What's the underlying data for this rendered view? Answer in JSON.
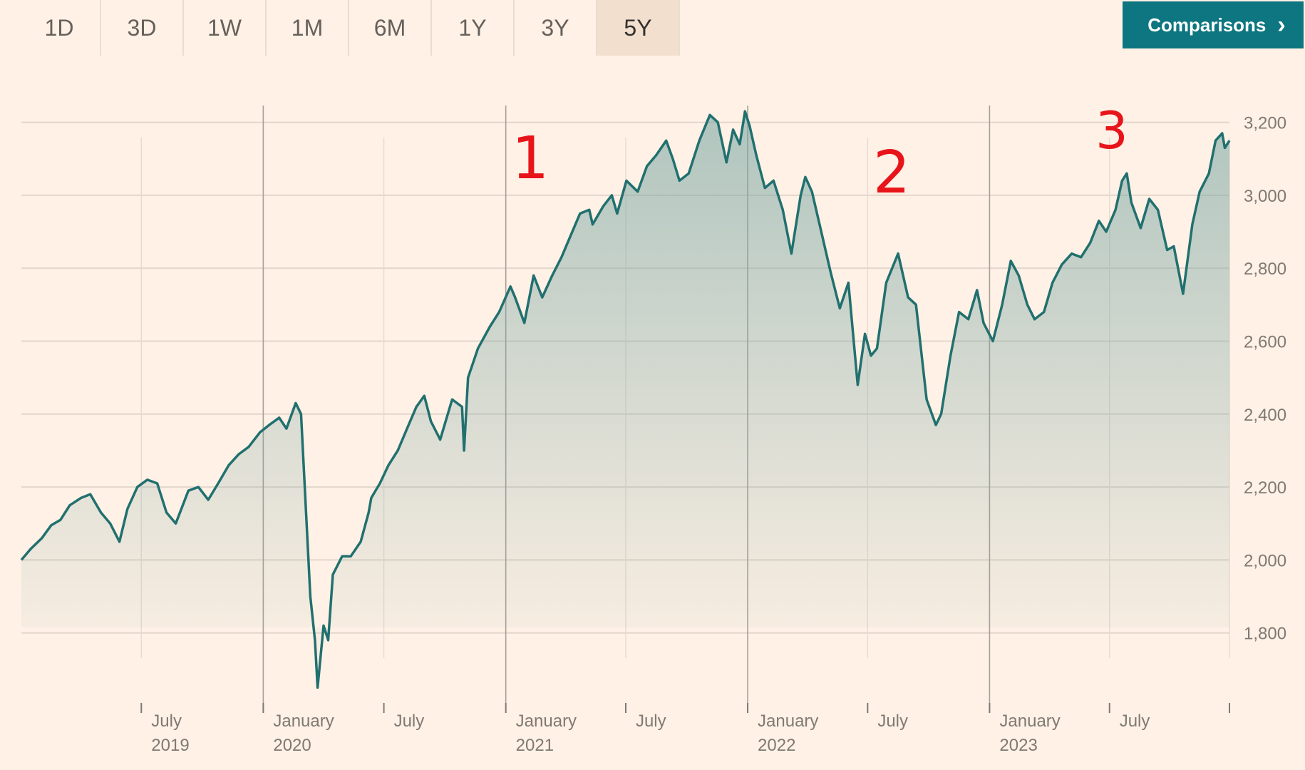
{
  "toolbar": {
    "tabs": [
      "1D",
      "3D",
      "1W",
      "1M",
      "6M",
      "1Y",
      "3Y",
      "5Y"
    ],
    "active_tab": "5Y",
    "comparisons_label": "Comparisons",
    "comparisons_icon": "chevron-right-icon"
  },
  "colors": {
    "background": "#fff1e5",
    "line": "#21706f",
    "fill": "#7aa7a4",
    "accent_button": "#0d7680",
    "annotation": "#e8141a"
  },
  "chart_data": {
    "type": "area",
    "ylim": [
      1600,
      3250
    ],
    "y_ticks": [
      1800,
      2000,
      2200,
      2400,
      2600,
      2800,
      3000,
      3200
    ],
    "y_tick_labels": [
      "1,800",
      "2,000",
      "2,200",
      "2,400",
      "2,600",
      "2,800",
      "3,000",
      "3,200"
    ],
    "x_start": "2019-01-01",
    "x_end": "2023-12-29",
    "x_ticks": [
      {
        "date": "2019-07-01",
        "label": "July",
        "year": "2019"
      },
      {
        "date": "2020-01-01",
        "label": "January",
        "year": "2020"
      },
      {
        "date": "2020-07-01",
        "label": "July",
        "year": ""
      },
      {
        "date": "2021-01-01",
        "label": "January",
        "year": "2021"
      },
      {
        "date": "2021-07-01",
        "label": "July",
        "year": ""
      },
      {
        "date": "2022-01-01",
        "label": "January",
        "year": "2022"
      },
      {
        "date": "2022-07-01",
        "label": "July",
        "year": ""
      },
      {
        "date": "2023-01-01",
        "label": "January",
        "year": "2023"
      },
      {
        "date": "2023-07-01",
        "label": "July",
        "year": ""
      },
      {
        "date": "2023-12-29",
        "label": "",
        "year": ""
      }
    ],
    "series": [
      {
        "values": [
          [
            "2019-01-01",
            2000
          ],
          [
            "2019-01-15",
            2030
          ],
          [
            "2019-02-01",
            2060
          ],
          [
            "2019-02-15",
            2095
          ],
          [
            "2019-03-01",
            2110
          ],
          [
            "2019-03-15",
            2150
          ],
          [
            "2019-04-01",
            2170
          ],
          [
            "2019-04-15",
            2180
          ],
          [
            "2019-05-01",
            2130
          ],
          [
            "2019-05-15",
            2100
          ],
          [
            "2019-05-29",
            2050
          ],
          [
            "2019-06-10",
            2140
          ],
          [
            "2019-06-25",
            2200
          ],
          [
            "2019-07-10",
            2220
          ],
          [
            "2019-07-25",
            2210
          ],
          [
            "2019-08-08",
            2130
          ],
          [
            "2019-08-22",
            2100
          ],
          [
            "2019-09-10",
            2190
          ],
          [
            "2019-09-25",
            2200
          ],
          [
            "2019-10-10",
            2165
          ],
          [
            "2019-10-25",
            2210
          ],
          [
            "2019-11-10",
            2260
          ],
          [
            "2019-11-25",
            2290
          ],
          [
            "2019-12-10",
            2310
          ],
          [
            "2019-12-27",
            2350
          ],
          [
            "2020-01-10",
            2370
          ],
          [
            "2020-01-25",
            2390
          ],
          [
            "2020-02-05",
            2360
          ],
          [
            "2020-02-19",
            2430
          ],
          [
            "2020-02-27",
            2400
          ],
          [
            "2020-03-05",
            2150
          ],
          [
            "2020-03-12",
            1900
          ],
          [
            "2020-03-19",
            1780
          ],
          [
            "2020-03-23",
            1650
          ],
          [
            "2020-04-01",
            1820
          ],
          [
            "2020-04-08",
            1780
          ],
          [
            "2020-04-15",
            1960
          ],
          [
            "2020-04-29",
            2010
          ],
          [
            "2020-05-12",
            2010
          ],
          [
            "2020-05-27",
            2050
          ],
          [
            "2020-06-08",
            2130
          ],
          [
            "2020-06-12",
            2170
          ],
          [
            "2020-06-25",
            2210
          ],
          [
            "2020-07-08",
            2260
          ],
          [
            "2020-07-22",
            2300
          ],
          [
            "2020-08-05",
            2360
          ],
          [
            "2020-08-19",
            2420
          ],
          [
            "2020-08-31",
            2450
          ],
          [
            "2020-09-10",
            2380
          ],
          [
            "2020-09-24",
            2330
          ],
          [
            "2020-10-12",
            2440
          ],
          [
            "2020-10-27",
            2420
          ],
          [
            "2020-10-30",
            2300
          ],
          [
            "2020-11-05",
            2500
          ],
          [
            "2020-11-20",
            2580
          ],
          [
            "2020-12-08",
            2640
          ],
          [
            "2020-12-22",
            2680
          ],
          [
            "2021-01-08",
            2750
          ],
          [
            "2021-01-15",
            2720
          ],
          [
            "2021-01-29",
            2650
          ],
          [
            "2021-02-12",
            2780
          ],
          [
            "2021-02-25",
            2720
          ],
          [
            "2021-03-12",
            2780
          ],
          [
            "2021-03-26",
            2830
          ],
          [
            "2021-04-09",
            2890
          ],
          [
            "2021-04-23",
            2950
          ],
          [
            "2021-05-07",
            2960
          ],
          [
            "2021-05-12",
            2920
          ],
          [
            "2021-05-28",
            2970
          ],
          [
            "2021-06-10",
            3000
          ],
          [
            "2021-06-18",
            2950
          ],
          [
            "2021-07-02",
            3040
          ],
          [
            "2021-07-19",
            3010
          ],
          [
            "2021-08-02",
            3080
          ],
          [
            "2021-08-16",
            3110
          ],
          [
            "2021-08-31",
            3150
          ],
          [
            "2021-09-10",
            3100
          ],
          [
            "2021-09-20",
            3040
          ],
          [
            "2021-10-04",
            3060
          ],
          [
            "2021-10-20",
            3150
          ],
          [
            "2021-11-05",
            3220
          ],
          [
            "2021-11-17",
            3200
          ],
          [
            "2021-11-30",
            3090
          ],
          [
            "2021-12-10",
            3180
          ],
          [
            "2021-12-20",
            3140
          ],
          [
            "2021-12-28",
            3230
          ],
          [
            "2022-01-04",
            3190
          ],
          [
            "2022-01-14",
            3110
          ],
          [
            "2022-01-27",
            3020
          ],
          [
            "2022-02-09",
            3040
          ],
          [
            "2022-02-23",
            2960
          ],
          [
            "2022-03-08",
            2840
          ],
          [
            "2022-03-22",
            3000
          ],
          [
            "2022-03-29",
            3050
          ],
          [
            "2022-04-08",
            3010
          ],
          [
            "2022-04-22",
            2900
          ],
          [
            "2022-05-06",
            2790
          ],
          [
            "2022-05-20",
            2690
          ],
          [
            "2022-06-02",
            2760
          ],
          [
            "2022-06-16",
            2480
          ],
          [
            "2022-06-27",
            2620
          ],
          [
            "2022-07-06",
            2560
          ],
          [
            "2022-07-15",
            2580
          ],
          [
            "2022-07-29",
            2760
          ],
          [
            "2022-08-16",
            2840
          ],
          [
            "2022-08-31",
            2720
          ],
          [
            "2022-09-12",
            2700
          ],
          [
            "2022-09-28",
            2440
          ],
          [
            "2022-10-12",
            2370
          ],
          [
            "2022-10-20",
            2400
          ],
          [
            "2022-11-03",
            2560
          ],
          [
            "2022-11-16",
            2680
          ],
          [
            "2022-11-30",
            2660
          ],
          [
            "2022-12-13",
            2740
          ],
          [
            "2022-12-23",
            2650
          ],
          [
            "2023-01-06",
            2600
          ],
          [
            "2023-01-20",
            2700
          ],
          [
            "2023-02-02",
            2820
          ],
          [
            "2023-02-14",
            2780
          ],
          [
            "2023-02-27",
            2700
          ],
          [
            "2023-03-10",
            2660
          ],
          [
            "2023-03-24",
            2680
          ],
          [
            "2023-04-06",
            2760
          ],
          [
            "2023-04-20",
            2810
          ],
          [
            "2023-05-05",
            2840
          ],
          [
            "2023-05-19",
            2830
          ],
          [
            "2023-06-02",
            2870
          ],
          [
            "2023-06-15",
            2930
          ],
          [
            "2023-06-26",
            2900
          ],
          [
            "2023-07-10",
            2960
          ],
          [
            "2023-07-20",
            3040
          ],
          [
            "2023-07-27",
            3060
          ],
          [
            "2023-08-03",
            2980
          ],
          [
            "2023-08-17",
            2910
          ],
          [
            "2023-08-30",
            2990
          ],
          [
            "2023-09-12",
            2960
          ],
          [
            "2023-09-26",
            2850
          ],
          [
            "2023-10-06",
            2860
          ],
          [
            "2023-10-20",
            2730
          ],
          [
            "2023-11-03",
            2920
          ],
          [
            "2023-11-14",
            3010
          ],
          [
            "2023-11-28",
            3060
          ],
          [
            "2023-12-08",
            3150
          ],
          [
            "2023-12-18",
            3170
          ],
          [
            "2023-12-22",
            3130
          ],
          [
            "2023-12-29",
            3150
          ]
        ]
      }
    ],
    "annotations": [
      "1",
      "2",
      "3"
    ]
  }
}
